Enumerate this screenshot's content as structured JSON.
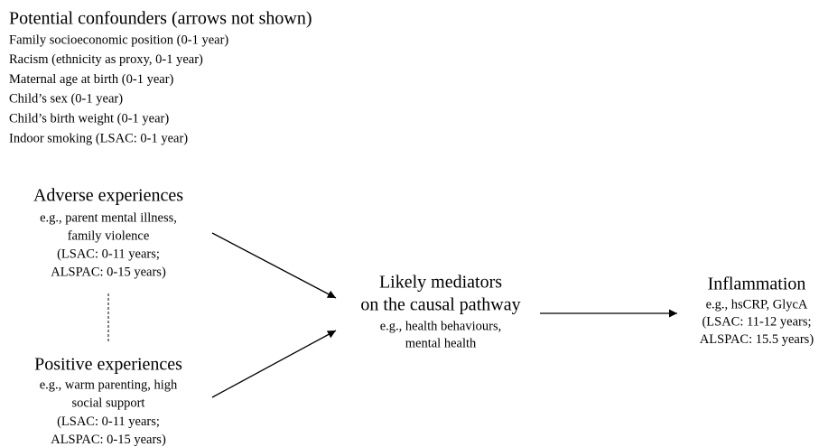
{
  "confounders": {
    "title": "Potential confounders (arrows not shown)",
    "items": [
      "Family socioeconomic position (0-1 year)",
      "Racism (ethnicity as proxy, 0-1 year)",
      "Maternal age at birth (0-1 year)",
      "Child’s sex (0-1 year)",
      "Child’s birth weight (0-1 year)",
      "Indoor smoking (LSAC: 0-1 year)"
    ]
  },
  "nodes": [
    {
      "title": [
        "Adverse experiences"
      ],
      "details": [
        "e.g., parent mental illness,",
        "family violence",
        "(LSAC: 0-11 years;",
        "ALSPAC: 0-15 years)"
      ]
    },
    {
      "title": [
        "Positive experiences"
      ],
      "details": [
        "e.g., warm parenting, high",
        "social support",
        "(LSAC: 0-11 years;",
        "ALSPAC: 0-15 years)"
      ]
    },
    {
      "title": [
        "Likely mediators",
        "on the causal pathway"
      ],
      "details": [
        "e.g., health behaviours,",
        "mental health"
      ]
    },
    {
      "title": [
        "Inflammation"
      ],
      "details": [
        "e.g., hsCRP, GlycA",
        "(LSAC: 11-12 years;",
        "ALSPAC: 15.5 years)"
      ]
    }
  ]
}
